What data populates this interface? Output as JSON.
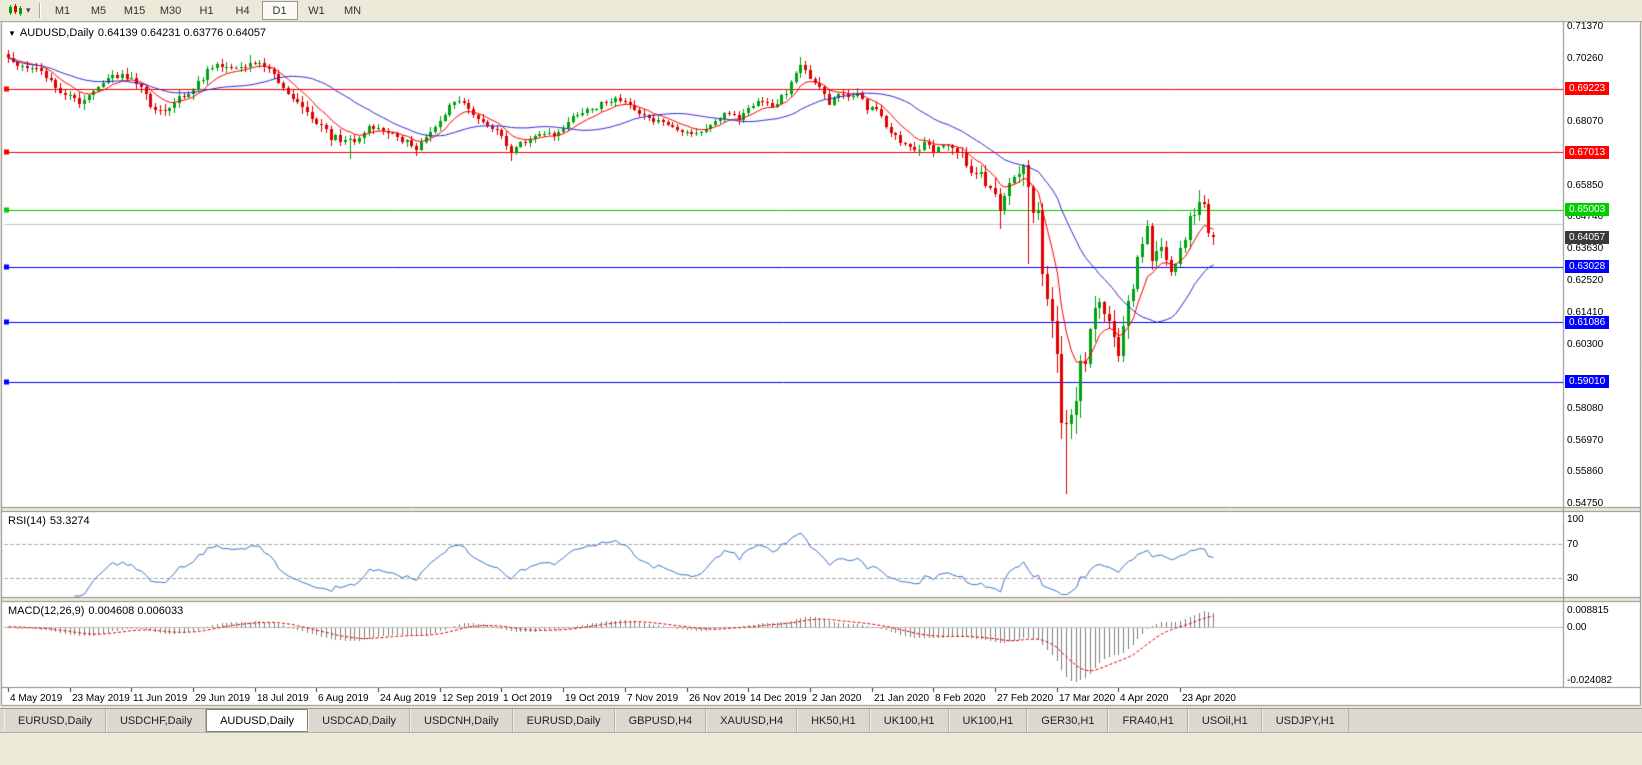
{
  "header": {
    "symbol": "AUDUSD,Daily",
    "ohlc": "0.64139 0.64231 0.63776 0.64057"
  },
  "toolbar": {
    "chart_type_icon": "candlestick-chart-icon",
    "timeframes": [
      "M1",
      "M5",
      "M15",
      "M30",
      "H1",
      "H4",
      "D1",
      "W1",
      "MN"
    ],
    "active_timeframe": "D1"
  },
  "tabs": {
    "items": [
      "EURUSD,Daily",
      "USDCHF,Daily",
      "AUDUSD,Daily",
      "USDCAD,Daily",
      "USDCNH,Daily",
      "EURUSD,Daily",
      "GBPUSD,H4",
      "XAUUSD,H4",
      "HK50,H1",
      "UK100,H1",
      "UK100,H1",
      "GER30,H1",
      "FRA40,H1",
      "USOil,H1",
      "USDJPY,H1"
    ],
    "active_index": 2
  },
  "chart_data": {
    "type": "candlestick",
    "symbol": "AUDUSD",
    "timeframe": "Daily",
    "last_bar": {
      "open": 0.64139,
      "high": 0.64231,
      "low": 0.63776,
      "close": 0.64057
    },
    "current_price": {
      "value": 0.64057,
      "badge_color": "#3A3A3A"
    },
    "colors": {
      "up": "#00A210",
      "down": "#E00000"
    },
    "price_axis": {
      "decimals": 5,
      "view_max": 0.7155,
      "view_min": 0.5462,
      "ticks": [
        0.7137,
        0.7026,
        0.6807,
        0.6585,
        0.6474,
        0.6363,
        0.6252,
        0.6141,
        0.603,
        0.5808,
        0.5697,
        0.5586,
        0.5475
      ]
    },
    "levels": [
      {
        "price": 0.69223,
        "color": "#FF0000",
        "marker": true
      },
      {
        "price": 0.67013,
        "color": "#FF0000",
        "marker": true
      },
      {
        "price": 0.65003,
        "color": "#00CC00",
        "marker": true
      },
      {
        "price": 0.645,
        "color": "#C8C8C8",
        "marker": false,
        "badge": false
      },
      {
        "price": 0.63028,
        "color": "#0000FF",
        "marker": true
      },
      {
        "price": 0.61086,
        "color": "#0000FF",
        "marker": true
      },
      {
        "price": 0.5901,
        "color": "#0000FF",
        "marker": true
      }
    ],
    "date_labels": [
      "4 May 2019",
      "23 May 2019",
      "11 Jun 2019",
      "29 Jun 2019",
      "18 Jul 2019",
      "6 Aug 2019",
      "24 Aug 2019",
      "12 Sep 2019",
      "1 Oct 2019",
      "19 Oct 2019",
      "7 Nov 2019",
      "26 Nov 2019",
      "14 Dec 2019",
      "2 Jan 2020",
      "21 Jan 2020",
      "8 Feb 2020",
      "27 Feb 2020",
      "17 Mar 2020",
      "4 Apr 2020",
      "23 Apr 2020"
    ],
    "bars_count": 255,
    "bars_per_date_tick": 13,
    "close_anchors": [
      [
        0,
        0.7022
      ],
      [
        2,
        0.7008
      ],
      [
        4,
        0.6988
      ],
      [
        6,
        0.6996
      ],
      [
        8,
        0.6958
      ],
      [
        10,
        0.6934
      ],
      [
        12,
        0.6896
      ],
      [
        15,
        0.688
      ],
      [
        18,
        0.6912
      ],
      [
        21,
        0.6952
      ],
      [
        24,
        0.6976
      ],
      [
        27,
        0.6948
      ],
      [
        30,
        0.6866
      ],
      [
        33,
        0.6852
      ],
      [
        36,
        0.6886
      ],
      [
        39,
        0.6924
      ],
      [
        42,
        0.6984
      ],
      [
        45,
        0.7004
      ],
      [
        48,
        0.6988
      ],
      [
        51,
        0.7014
      ],
      [
        54,
        0.7004
      ],
      [
        56,
        0.6968
      ],
      [
        58,
        0.6922
      ],
      [
        60,
        0.688
      ],
      [
        62,
        0.6852
      ],
      [
        64,
        0.6822
      ],
      [
        66,
        0.6792
      ],
      [
        68,
        0.6756
      ],
      [
        70,
        0.6744
      ],
      [
        72,
        0.674
      ],
      [
        74,
        0.6756
      ],
      [
        76,
        0.679
      ],
      [
        78,
        0.6786
      ],
      [
        81,
        0.676
      ],
      [
        84,
        0.6736
      ],
      [
        86,
        0.6716
      ],
      [
        88,
        0.6762
      ],
      [
        91,
        0.6816
      ],
      [
        93,
        0.6864
      ],
      [
        95,
        0.688
      ],
      [
        98,
        0.684
      ],
      [
        101,
        0.6792
      ],
      [
        104,
        0.6756
      ],
      [
        106,
        0.6706
      ],
      [
        109,
        0.674
      ],
      [
        112,
        0.6772
      ],
      [
        115,
        0.6756
      ],
      [
        117,
        0.679
      ],
      [
        120,
        0.684
      ],
      [
        123,
        0.6852
      ],
      [
        126,
        0.6876
      ],
      [
        128,
        0.689
      ],
      [
        130,
        0.6884
      ],
      [
        132,
        0.6858
      ],
      [
        135,
        0.6812
      ],
      [
        138,
        0.6806
      ],
      [
        141,
        0.6786
      ],
      [
        143,
        0.6776
      ],
      [
        146,
        0.6766
      ],
      [
        149,
        0.6812
      ],
      [
        152,
        0.684
      ],
      [
        154,
        0.6816
      ],
      [
        156,
        0.6856
      ],
      [
        158,
        0.688
      ],
      [
        161,
        0.6862
      ],
      [
        164,
        0.6906
      ],
      [
        167,
        0.7014
      ],
      [
        169,
        0.6962
      ],
      [
        171,
        0.6932
      ],
      [
        173,
        0.6872
      ],
      [
        175,
        0.6904
      ],
      [
        177,
        0.6896
      ],
      [
        179,
        0.6906
      ],
      [
        181,
        0.6856
      ],
      [
        183,
        0.6846
      ],
      [
        185,
        0.6792
      ],
      [
        187,
        0.6762
      ],
      [
        189,
        0.6722
      ],
      [
        191,
        0.6702
      ],
      [
        193,
        0.6736
      ],
      [
        195,
        0.6712
      ],
      [
        197,
        0.6722
      ],
      [
        199,
        0.6716
      ],
      [
        201,
        0.6692
      ],
      [
        203,
        0.6642
      ],
      [
        205,
        0.6622
      ],
      [
        207,
        0.6562
      ],
      [
        208,
        0.6566
      ],
      [
        209,
        0.6516
      ],
      [
        210,
        0.654
      ],
      [
        211,
        0.659
      ],
      [
        212,
        0.6624
      ],
      [
        213,
        0.661
      ],
      [
        214,
        0.664
      ],
      [
        215,
        0.658
      ],
      [
        216,
        0.65
      ],
      [
        217,
        0.649
      ],
      [
        218,
        0.629
      ],
      [
        219,
        0.618
      ],
      [
        220,
        0.612
      ],
      [
        221,
        0.599
      ],
      [
        222,
        0.577
      ],
      [
        223,
        0.5745
      ],
      [
        224,
        0.58
      ],
      [
        225,
        0.5825
      ],
      [
        226,
        0.596
      ],
      [
        227,
        0.5955
      ],
      [
        228,
        0.6075
      ],
      [
        229,
        0.6165
      ],
      [
        230,
        0.617
      ],
      [
        231,
        0.6135
      ],
      [
        232,
        0.6095
      ],
      [
        233,
        0.606
      ],
      [
        234,
        0.599
      ],
      [
        235,
        0.6085
      ],
      [
        236,
        0.6165
      ],
      [
        237,
        0.622
      ],
      [
        238,
        0.6335
      ],
      [
        239,
        0.638
      ],
      [
        240,
        0.6445
      ],
      [
        241,
        0.632
      ],
      [
        242,
        0.6355
      ],
      [
        243,
        0.6365
      ],
      [
        244,
        0.6335
      ],
      [
        245,
        0.629
      ],
      [
        246,
        0.632
      ],
      [
        247,
        0.637
      ],
      [
        248,
        0.639
      ],
      [
        249,
        0.6465
      ],
      [
        250,
        0.6495
      ],
      [
        251,
        0.6545
      ],
      [
        252,
        0.651
      ],
      [
        253,
        0.6425
      ],
      [
        254,
        0.64057
      ]
    ],
    "vol_anchors": [
      [
        0,
        0.0035
      ],
      [
        40,
        0.0035
      ],
      [
        55,
        0.003
      ],
      [
        62,
        0.004
      ],
      [
        75,
        0.0035
      ],
      [
        100,
        0.003
      ],
      [
        160,
        0.0028
      ],
      [
        190,
        0.003
      ],
      [
        205,
        0.0045
      ],
      [
        209,
        0.0065
      ],
      [
        214,
        0.0075
      ],
      [
        218,
        0.011
      ],
      [
        223,
        0.013
      ],
      [
        228,
        0.011
      ],
      [
        234,
        0.0085
      ],
      [
        240,
        0.007
      ],
      [
        248,
        0.0055
      ],
      [
        254,
        0.0045
      ]
    ],
    "wick_overrides": {
      "51": {
        "h": 0.704
      },
      "72": {
        "l": 0.6677
      },
      "86": {
        "l": 0.6688
      },
      "106": {
        "l": 0.667
      },
      "167": {
        "h": 0.7032
      },
      "209": {
        "l": 0.6434
      },
      "215": {
        "l": 0.6313
      },
      "222": {
        "l": 0.5702
      },
      "223": {
        "l": 0.551
      },
      "251": {
        "h": 0.657
      }
    },
    "moving_averages": [
      {
        "name": "ma-fast",
        "type": "ema",
        "period": 8,
        "color": "#FF0000"
      },
      {
        "name": "ma-slow",
        "type": "sma",
        "period": 25,
        "color": "#2A2AD4"
      }
    ],
    "indicators": {
      "rsi": {
        "label": "RSI(14)",
        "value": "53.3274",
        "period": 14,
        "levels": [
          70,
          30
        ],
        "axis_values": [
          100,
          70,
          30
        ],
        "view": [
          6,
          108
        ],
        "color": "#3C78C8"
      },
      "macd": {
        "label": "MACD(12,26,9)",
        "values": "0.004608 0.006033",
        "axis_labels": [
          "0.008815",
          "0.00",
          "-0.024082"
        ],
        "max": 0.008815,
        "min": -0.024082,
        "hist_color": "#808080",
        "signal_color": "#E00000"
      }
    }
  }
}
